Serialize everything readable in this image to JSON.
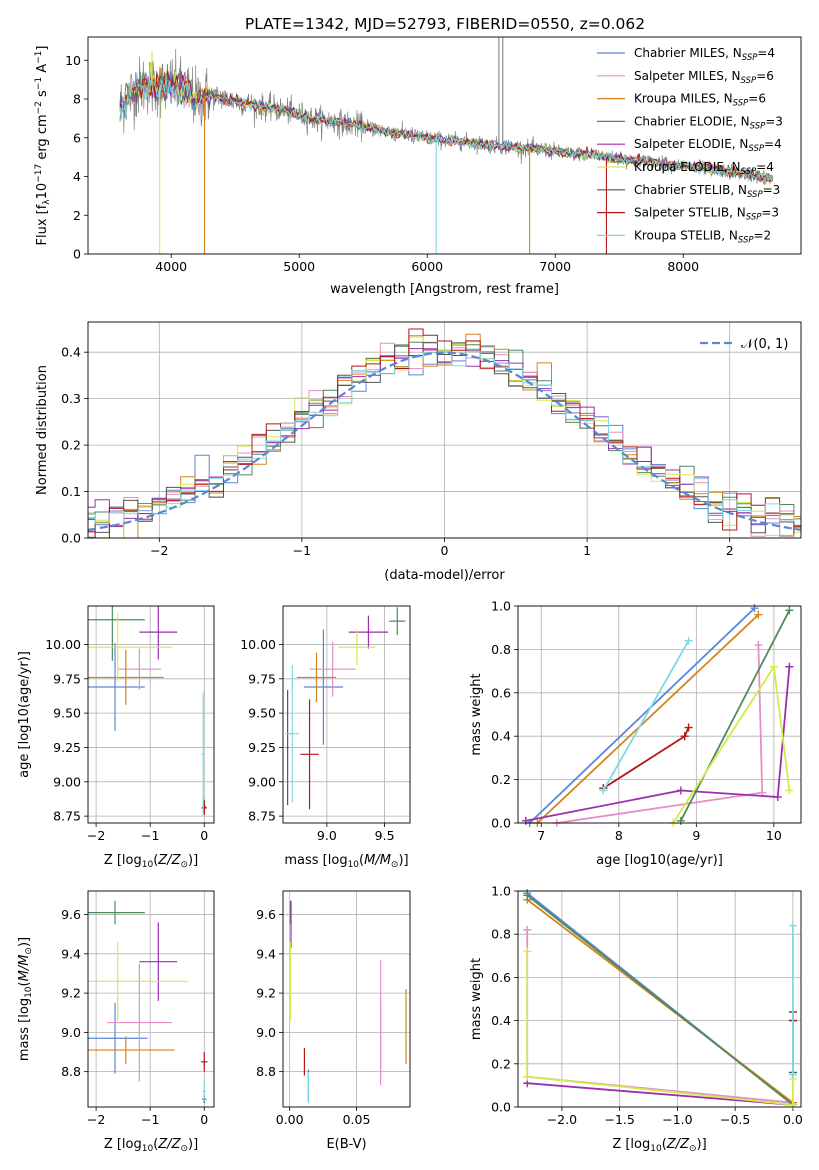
{
  "figure": {
    "title": "PLATE=1342, MJD=52793, FIBERID=0550, z=0.062"
  },
  "colors": {
    "chabrier_miles": "#5b86d6",
    "salpeter_miles": "#e58fc5",
    "kroupa_miles": "#d6831e",
    "chabrier_elodie": "#4f8a5d",
    "salpeter_elodie": "#9b2fae",
    "kroupa_elodie": "#d3ea4c",
    "chabrier_stelib": "#555555",
    "salpeter_stelib": "#b01818",
    "kroupa_stelib": "#7dd9e3",
    "data": "#808080",
    "grid": "#b0b0b0"
  },
  "legend": [
    {
      "label": "Chabrier MILES, N",
      "sub": "SSP",
      "tail": "=4",
      "color_key": "chabrier_miles"
    },
    {
      "label": "Salpeter MILES, N",
      "sub": "SSP",
      "tail": "=6",
      "color_key": "salpeter_miles"
    },
    {
      "label": "Kroupa MILES, N",
      "sub": "SSP",
      "tail": "=6",
      "color_key": "kroupa_miles"
    },
    {
      "label": "Chabrier ELODIE, N",
      "sub": "SSP",
      "tail": "=3",
      "color_key": "chabrier_elodie"
    },
    {
      "label": "Salpeter ELODIE, N",
      "sub": "SSP",
      "tail": "=4",
      "color_key": "salpeter_elodie"
    },
    {
      "label": "Kroupa ELODIE, N",
      "sub": "SSP",
      "tail": "=4",
      "color_key": "kroupa_elodie"
    },
    {
      "label": "Chabrier STELIB, N",
      "sub": "SSP",
      "tail": "=3",
      "color_key": "chabrier_stelib"
    },
    {
      "label": "Salpeter STELIB, N",
      "sub": "SSP",
      "tail": "=3",
      "color_key": "salpeter_stelib"
    },
    {
      "label": "Kroupa STELIB, N",
      "sub": "SSP",
      "tail": "=2",
      "color_key": "kroupa_stelib"
    }
  ],
  "chart_data": [
    {
      "id": "spectrum",
      "type": "line",
      "xlabel": "wavelength [Angstrom, rest frame]",
      "ylabel_parts": [
        "Flux [f",
        "λ",
        "10",
        "−17",
        " erg cm",
        "−2",
        " s",
        "−1",
        " A",
        "−1",
        "]"
      ],
      "xlim": [
        3350,
        8920
      ],
      "ylim": [
        0,
        11.2
      ],
      "xticks": [
        4000,
        5000,
        6000,
        7000,
        8000
      ],
      "yticks": [
        0,
        2,
        4,
        6,
        8,
        10
      ],
      "data_envelope": {
        "x": [
          3600,
          3700,
          3800,
          3900,
          4000,
          4100,
          4200,
          4300,
          4500,
          4700,
          4900,
          5100,
          5300,
          5500,
          5700,
          5900,
          6100,
          6300,
          6500,
          6700,
          6900,
          7100,
          7300,
          7500,
          7700,
          7900,
          8100,
          8300,
          8500,
          8700
        ],
        "y": [
          7.6,
          8.4,
          8.8,
          8.6,
          8.7,
          8.5,
          8.0,
          8.2,
          7.9,
          7.6,
          7.4,
          7.0,
          6.8,
          6.6,
          6.3,
          6.1,
          5.9,
          5.8,
          5.6,
          5.5,
          5.4,
          5.2,
          5.1,
          4.9,
          4.8,
          4.6,
          4.5,
          4.3,
          4.1,
          3.9
        ]
      },
      "spikes": [
        {
          "x": 3850,
          "y": 10.5
        },
        {
          "x": 3910,
          "y": 0.0
        },
        {
          "x": 4260,
          "y": 0.0
        },
        {
          "x": 6070,
          "y": 0.0
        },
        {
          "x": 6560,
          "y": 11.2
        },
        {
          "x": 6590,
          "y": 11.2
        },
        {
          "x": 6800,
          "y": 0.0
        },
        {
          "x": 7400,
          "y": 0.0
        }
      ]
    },
    {
      "id": "residuals",
      "type": "histogram",
      "xlabel": "(data-model)/error",
      "ylabel": "Normed distribution",
      "xlim": [
        -2.5,
        2.5
      ],
      "ylim": [
        0,
        0.465
      ],
      "xticks": [
        -2,
        -1,
        0,
        1,
        2
      ],
      "yticks": [
        0.0,
        0.1,
        0.2,
        0.3,
        0.4
      ],
      "bin_width": 0.1,
      "gaussian_label": "𝒩(0, 1)",
      "gaussian_color": "#5b86d6"
    },
    {
      "id": "age_vs_Z",
      "type": "errorbar",
      "xlabel_parts": [
        "Z [log",
        "10",
        "(",
        "Z/Z",
        "⊙",
        ")]"
      ],
      "ylabel_parts": [
        "age  [log",
        "10",
        "(",
        "age/yr",
        ")]"
      ],
      "xlim": [
        -2.15,
        0.18
      ],
      "ylim": [
        8.7,
        10.28
      ],
      "xticks": [
        -2,
        -1,
        0
      ],
      "yticks": [
        8.75,
        9.0,
        9.25,
        9.5,
        9.75,
        10.0
      ],
      "points": [
        {
          "color_key": "chabrier_miles",
          "x": -1.65,
          "xerr": 0.55,
          "y": 9.69,
          "yerr": 0.32
        },
        {
          "color_key": "salpeter_miles",
          "x": -1.2,
          "xerr": 0.4,
          "y": 9.82,
          "yerr": 0.15
        },
        {
          "color_key": "kroupa_miles",
          "x": -1.45,
          "xerr": 0.7,
          "y": 9.76,
          "yerr": 0.2
        },
        {
          "color_key": "chabrier_elodie",
          "x": -1.7,
          "xerr": 0.6,
          "y": 10.18,
          "yerr": 0.3
        },
        {
          "color_key": "salpeter_elodie",
          "x": -0.85,
          "xerr": 0.35,
          "y": 10.09,
          "yerr": 0.2
        },
        {
          "color_key": "kroupa_elodie",
          "x": -1.6,
          "xerr": 1.0,
          "y": 9.98,
          "yerr": 0.25
        },
        {
          "color_key": "chabrier_stelib",
          "x": 0.0,
          "xerr": 0.03,
          "y": 8.82,
          "yerr": 0.05
        },
        {
          "color_key": "salpeter_stelib",
          "x": 0.0,
          "xerr": 0.05,
          "y": 8.81,
          "yerr": 0.05
        },
        {
          "color_key": "kroupa_stelib",
          "x": -0.02,
          "xerr": 0.03,
          "y": 9.2,
          "yerr": 0.45
        }
      ]
    },
    {
      "id": "age_vs_mass",
      "type": "errorbar",
      "xlabel_parts": [
        "mass [log",
        "10",
        "(",
        "M/M",
        "⊙",
        ")]"
      ],
      "ylabel_parts": [],
      "xlim": [
        8.62,
        9.72
      ],
      "ylim": [
        8.7,
        10.28
      ],
      "xticks": [
        9.0,
        9.5
      ],
      "yticks": [
        8.75,
        9.0,
        9.25,
        9.5,
        9.75,
        10.0
      ],
      "points": [
        {
          "color_key": "chabrier_miles",
          "x": 8.97,
          "xerr": 0.17,
          "y": 9.69,
          "yerr": 0.42
        },
        {
          "color_key": "salpeter_miles",
          "x": 9.05,
          "xerr": 0.2,
          "y": 9.82,
          "yerr": 0.2
        },
        {
          "color_key": "kroupa_miles",
          "x": 8.91,
          "xerr": 0.17,
          "y": 9.76,
          "yerr": 0.18
        },
        {
          "color_key": "chabrier_elodie",
          "x": 9.61,
          "xerr": 0.07,
          "y": 10.17,
          "yerr": 0.1
        },
        {
          "color_key": "salpeter_elodie",
          "x": 9.36,
          "xerr": 0.17,
          "y": 10.09,
          "yerr": 0.12
        },
        {
          "color_key": "kroupa_elodie",
          "x": 9.26,
          "xerr": 0.16,
          "y": 9.98,
          "yerr": 0.13
        },
        {
          "color_key": "chabrier_stelib",
          "x": 8.66,
          "xerr": 0.01,
          "y": 9.25,
          "yerr": 0.42
        },
        {
          "color_key": "salpeter_stelib",
          "x": 8.85,
          "xerr": 0.08,
          "y": 9.2,
          "yerr": 0.4
        },
        {
          "color_key": "kroupa_stelib",
          "x": 8.7,
          "xerr": 0.06,
          "y": 9.35,
          "yerr": 0.5
        }
      ]
    },
    {
      "id": "massweight_vs_age",
      "type": "line",
      "xlabel_parts": [
        "age  [log",
        "10",
        "(",
        "age/yr",
        ")]"
      ],
      "ylabel": "mass weight",
      "xlim": [
        6.7,
        10.35
      ],
      "ylim": [
        0,
        1.0
      ],
      "xticks": [
        7,
        8,
        9,
        10
      ],
      "yticks": [
        0.0,
        0.2,
        0.4,
        0.6,
        0.8,
        1.0
      ],
      "series": [
        {
          "color_key": "chabrier_miles",
          "x": [
            6.85,
            9.75
          ],
          "y": [
            0.0,
            0.99
          ]
        },
        {
          "color_key": "salpeter_miles",
          "x": [
            7.2,
            9.85,
            9.8
          ],
          "y": [
            0.0,
            0.14,
            0.82
          ]
        },
        {
          "color_key": "kroupa_miles",
          "x": [
            6.95,
            9.8
          ],
          "y": [
            0.0,
            0.96
          ]
        },
        {
          "color_key": "chabrier_elodie",
          "x": [
            8.8,
            10.2
          ],
          "y": [
            0.01,
            0.98
          ]
        },
        {
          "color_key": "salpeter_elodie",
          "x": [
            6.8,
            8.8,
            10.05,
            10.2
          ],
          "y": [
            0.01,
            0.15,
            0.12,
            0.72
          ]
        },
        {
          "color_key": "kroupa_elodie",
          "x": [
            8.7,
            10.0,
            10.2
          ],
          "y": [
            0.0,
            0.72,
            0.15
          ]
        },
        {
          "color_key": "chabrier_stelib",
          "x": [
            7.8
          ],
          "y": [
            0.16
          ]
        },
        {
          "color_key": "salpeter_stelib",
          "x": [
            7.8,
            8.85,
            8.9
          ],
          "y": [
            0.16,
            0.4,
            0.44
          ]
        },
        {
          "color_key": "kroupa_stelib",
          "x": [
            7.8,
            8.9
          ],
          "y": [
            0.15,
            0.84
          ]
        }
      ]
    },
    {
      "id": "mass_vs_Z",
      "type": "errorbar",
      "xlabel_parts": [
        "Z [log",
        "10",
        "(",
        "Z/Z",
        "⊙",
        ")]"
      ],
      "ylabel_parts": [
        "mass [log",
        "10",
        "(",
        "M/M",
        "⊙",
        ")]"
      ],
      "xlim": [
        -2.15,
        0.18
      ],
      "ylim": [
        8.62,
        9.72
      ],
      "xticks": [
        -2,
        -1,
        0
      ],
      "yticks": [
        8.8,
        9.0,
        9.2,
        9.4,
        9.6
      ],
      "points": [
        {
          "color_key": "chabrier_miles",
          "x": -1.65,
          "xerr": 0.6,
          "y": 8.97,
          "yerr": 0.18
        },
        {
          "color_key": "salpeter_miles",
          "x": -1.2,
          "xerr": 0.6,
          "y": 9.05,
          "yerr": 0.3
        },
        {
          "color_key": "kroupa_miles",
          "x": -1.45,
          "xerr": 0.9,
          "y": 8.91,
          "yerr": 0.07
        },
        {
          "color_key": "chabrier_elodie",
          "x": -1.65,
          "xerr": 0.55,
          "y": 9.61,
          "yerr": 0.06
        },
        {
          "color_key": "salpeter_elodie",
          "x": -0.85,
          "xerr": 0.35,
          "y": 9.36,
          "yerr": 0.2
        },
        {
          "color_key": "kroupa_elodie",
          "x": -1.6,
          "xerr": 1.3,
          "y": 9.26,
          "yerr": 0.2
        },
        {
          "color_key": "chabrier_stelib",
          "x": 0.0,
          "xerr": 0.04,
          "y": 8.66,
          "yerr": 0.02
        },
        {
          "color_key": "salpeter_stelib",
          "x": 0.0,
          "xerr": 0.06,
          "y": 8.85,
          "yerr": 0.05
        },
        {
          "color_key": "kroupa_stelib",
          "x": 0.0,
          "xerr": 0.03,
          "y": 8.7,
          "yerr": 0.05
        }
      ]
    },
    {
      "id": "mass_vs_EBV",
      "type": "errorbar",
      "xlabel": "E(B-V)",
      "ylabel_parts": [],
      "xlim": [
        -0.005,
        0.09
      ],
      "ylim": [
        8.62,
        9.72
      ],
      "xticks": [
        0.0,
        0.05
      ],
      "yticks": [
        8.8,
        9.0,
        9.2,
        9.4,
        9.6
      ],
      "points": [
        {
          "color_key": "chabrier_miles",
          "x": 0.068,
          "xerr": 0.0,
          "y": 8.97,
          "yerr": 0.18
        },
        {
          "color_key": "salpeter_miles",
          "x": 0.068,
          "xerr": 0.0,
          "y": 9.05,
          "yerr": 0.32
        },
        {
          "color_key": "kroupa_miles",
          "x": 0.087,
          "xerr": 0.0,
          "y": 9.03,
          "yerr": 0.19
        },
        {
          "color_key": "chabrier_elodie",
          "x": 0.0005,
          "xerr": 0.0,
          "y": 9.61,
          "yerr": 0.06
        },
        {
          "color_key": "salpeter_elodie",
          "x": 0.001,
          "xerr": 0.0,
          "y": 9.55,
          "yerr": 0.12
        },
        {
          "color_key": "kroupa_elodie",
          "x": 0.0005,
          "xerr": 0.0,
          "y": 9.26,
          "yerr": 0.2
        },
        {
          "color_key": "chabrier_stelib",
          "x": 0.014,
          "xerr": 0.0,
          "y": 8.73,
          "yerr": 0.08
        },
        {
          "color_key": "salpeter_stelib",
          "x": 0.011,
          "xerr": 0.0,
          "y": 8.85,
          "yerr": 0.07
        },
        {
          "color_key": "kroupa_stelib",
          "x": 0.014,
          "xerr": 0.0,
          "y": 8.72,
          "yerr": 0.08
        }
      ]
    },
    {
      "id": "massweight_vs_Z",
      "type": "line",
      "xlabel_parts": [
        "Z [log",
        "10",
        "(",
        "Z/Z",
        "⊙",
        ")]"
      ],
      "ylabel": "mass weight",
      "xlim": [
        -2.38,
        0.07
      ],
      "ylim": [
        0,
        1.0
      ],
      "xticks": [
        -2.0,
        -1.5,
        -1.0,
        -0.5,
        0.0
      ],
      "yticks": [
        0.0,
        0.2,
        0.4,
        0.6,
        0.8,
        1.0
      ],
      "series": [
        {
          "color_key": "chabrier_miles",
          "x": [
            -2.3,
            0.0
          ],
          "y": [
            0.99,
            0.01
          ]
        },
        {
          "color_key": "salpeter_miles",
          "x": [
            -2.3,
            -2.3,
            0.0
          ],
          "y": [
            0.82,
            0.14,
            0.02
          ]
        },
        {
          "color_key": "kroupa_miles",
          "x": [
            -2.3,
            0.0
          ],
          "y": [
            0.96,
            0.02
          ]
        },
        {
          "color_key": "chabrier_elodie",
          "x": [
            -2.3,
            0.0
          ],
          "y": [
            0.98,
            0.01
          ]
        },
        {
          "color_key": "salpeter_elodie",
          "x": [
            -2.3,
            0.0
          ],
          "y": [
            0.11,
            0.01
          ]
        },
        {
          "color_key": "kroupa_elodie",
          "x": [
            -2.3,
            -2.3,
            0.0,
            0.0
          ],
          "y": [
            0.72,
            0.14,
            0.01,
            0.13
          ]
        },
        {
          "color_key": "chabrier_stelib",
          "x": [
            0.0,
            0.0
          ],
          "y": [
            0.16,
            0.4
          ]
        },
        {
          "color_key": "salpeter_stelib",
          "x": [
            0.0,
            0.0
          ],
          "y": [
            0.44,
            0.4
          ]
        },
        {
          "color_key": "kroupa_stelib",
          "x": [
            0.0,
            0.0
          ],
          "y": [
            0.15,
            0.84
          ]
        }
      ]
    }
  ]
}
